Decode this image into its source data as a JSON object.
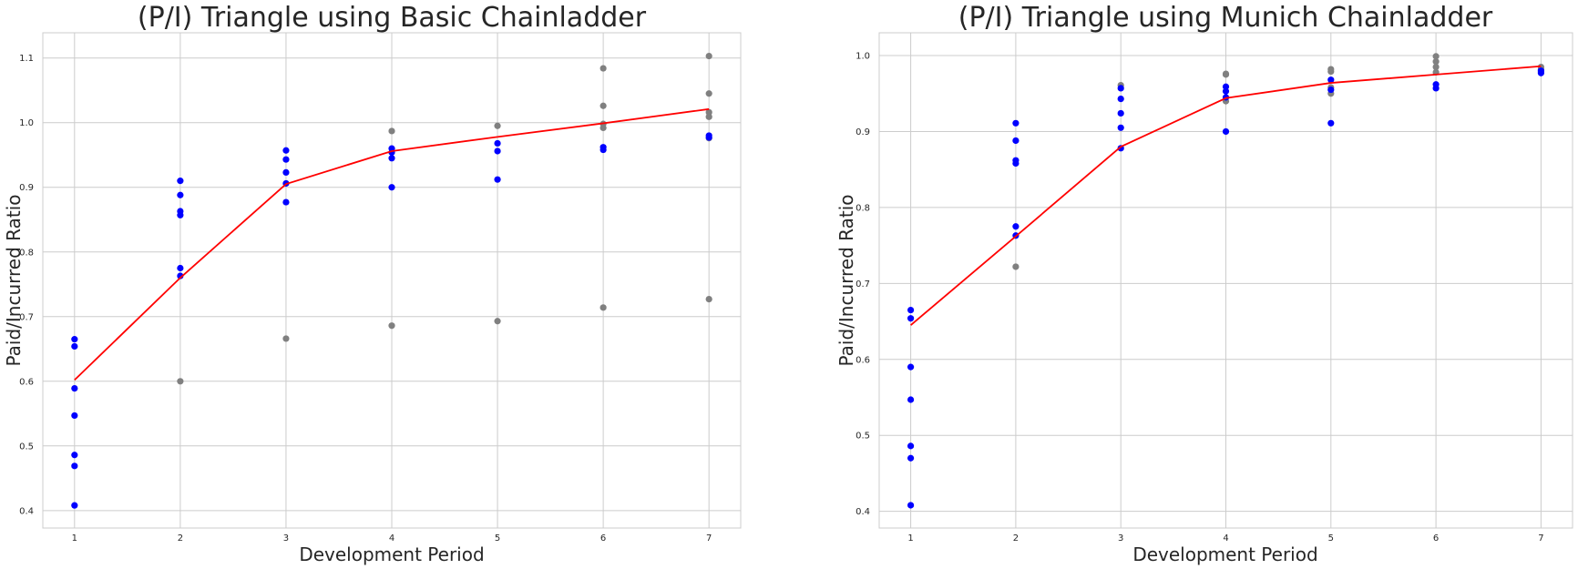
{
  "colors": {
    "observed": "#0000ff",
    "projected": "#808080",
    "average_line": "#ff0000",
    "grid": "#cccccc"
  },
  "chart_data": [
    {
      "type": "scatter",
      "title": "(P/I) Triangle using Basic Chainladder",
      "xlabel": "Development Period",
      "ylabel": "Paid/Incurred Ratio",
      "xlim": [
        0.7,
        7.3
      ],
      "ylim": [
        0.373,
        1.139
      ],
      "xticks": [
        1,
        2,
        3,
        4,
        5,
        6,
        7
      ],
      "yticks": [
        0.4,
        0.5,
        0.6,
        0.7,
        0.8,
        0.9,
        1.0,
        1.1
      ],
      "ytick_labels": [
        "0.4",
        "0.5",
        "0.6",
        "0.7",
        "0.8",
        "0.9",
        "1.0",
        "1.1"
      ],
      "grid": true,
      "series": [
        {
          "role": "observed",
          "mark": "point",
          "x": [
            1,
            1,
            1,
            1,
            1,
            1,
            1,
            2,
            2,
            2,
            2,
            2,
            2,
            3,
            3,
            3,
            3,
            3,
            4,
            4,
            4,
            4,
            5,
            5,
            5,
            6,
            6,
            7,
            7
          ],
          "y": [
            0.665,
            0.654,
            0.589,
            0.547,
            0.486,
            0.469,
            0.408,
            0.91,
            0.888,
            0.863,
            0.857,
            0.775,
            0.763,
            0.957,
            0.943,
            0.923,
            0.906,
            0.877,
            0.96,
            0.954,
            0.945,
            0.9,
            0.968,
            0.956,
            0.912,
            0.962,
            0.958,
            0.98,
            0.977
          ]
        },
        {
          "role": "projected",
          "mark": "point",
          "x": [
            2,
            3,
            4,
            4,
            5,
            5,
            6,
            6,
            6,
            6,
            6,
            7,
            7,
            7,
            7,
            7,
            7
          ],
          "y": [
            0.6,
            0.666,
            0.686,
            0.987,
            0.693,
            0.995,
            0.714,
            0.992,
            0.998,
            1.026,
            1.084,
            0.727,
            0.976,
            1.009,
            1.016,
            1.045,
            1.103
          ]
        },
        {
          "role": "average",
          "mark": "line",
          "x": [
            1,
            2,
            3,
            4,
            5,
            6,
            7
          ],
          "y": [
            0.602,
            0.76,
            0.905,
            0.956,
            0.978,
            0.999,
            1.021
          ]
        }
      ]
    },
    {
      "type": "scatter",
      "title": "(P/I) Triangle using Munich Chainladder",
      "xlabel": "Development Period",
      "ylabel": "Paid/Incurred Ratio",
      "xlim": [
        0.7,
        7.3
      ],
      "ylim": [
        0.378,
        1.03
      ],
      "xticks": [
        1,
        2,
        3,
        4,
        5,
        6,
        7
      ],
      "yticks": [
        0.4,
        0.5,
        0.6,
        0.7,
        0.8,
        0.9,
        1.0
      ],
      "ytick_labels": [
        "0.4",
        "0.5",
        "0.6",
        "0.7",
        "0.8",
        "0.9",
        "1.0"
      ],
      "grid": true,
      "series": [
        {
          "role": "observed",
          "mark": "point",
          "x": [
            1,
            1,
            1,
            1,
            1,
            1,
            1,
            2,
            2,
            2,
            2,
            2,
            2,
            3,
            3,
            3,
            3,
            3,
            4,
            4,
            4,
            4,
            5,
            5,
            5,
            6,
            6,
            7,
            7
          ],
          "y": [
            0.665,
            0.654,
            0.59,
            0.547,
            0.486,
            0.47,
            0.408,
            0.911,
            0.888,
            0.862,
            0.858,
            0.775,
            0.763,
            0.957,
            0.943,
            0.924,
            0.905,
            0.878,
            0.959,
            0.953,
            0.945,
            0.9,
            0.968,
            0.955,
            0.911,
            0.962,
            0.957,
            0.98,
            0.977
          ]
        },
        {
          "role": "projected",
          "mark": "point",
          "x": [
            2,
            3,
            4,
            4,
            4,
            5,
            5,
            5,
            5,
            6,
            6,
            6,
            6,
            7,
            7,
            7
          ],
          "y": [
            0.722,
            0.961,
            0.975,
            0.976,
            0.94,
            0.982,
            0.979,
            0.958,
            0.95,
            0.999,
            0.992,
            0.985,
            0.978,
            0.985,
            0.982,
            0.979
          ]
        },
        {
          "role": "average",
          "mark": "line",
          "x": [
            1,
            2,
            3,
            4,
            5,
            6,
            7
          ],
          "y": [
            0.645,
            0.762,
            0.88,
            0.944,
            0.964,
            0.975,
            0.986
          ]
        }
      ]
    }
  ]
}
